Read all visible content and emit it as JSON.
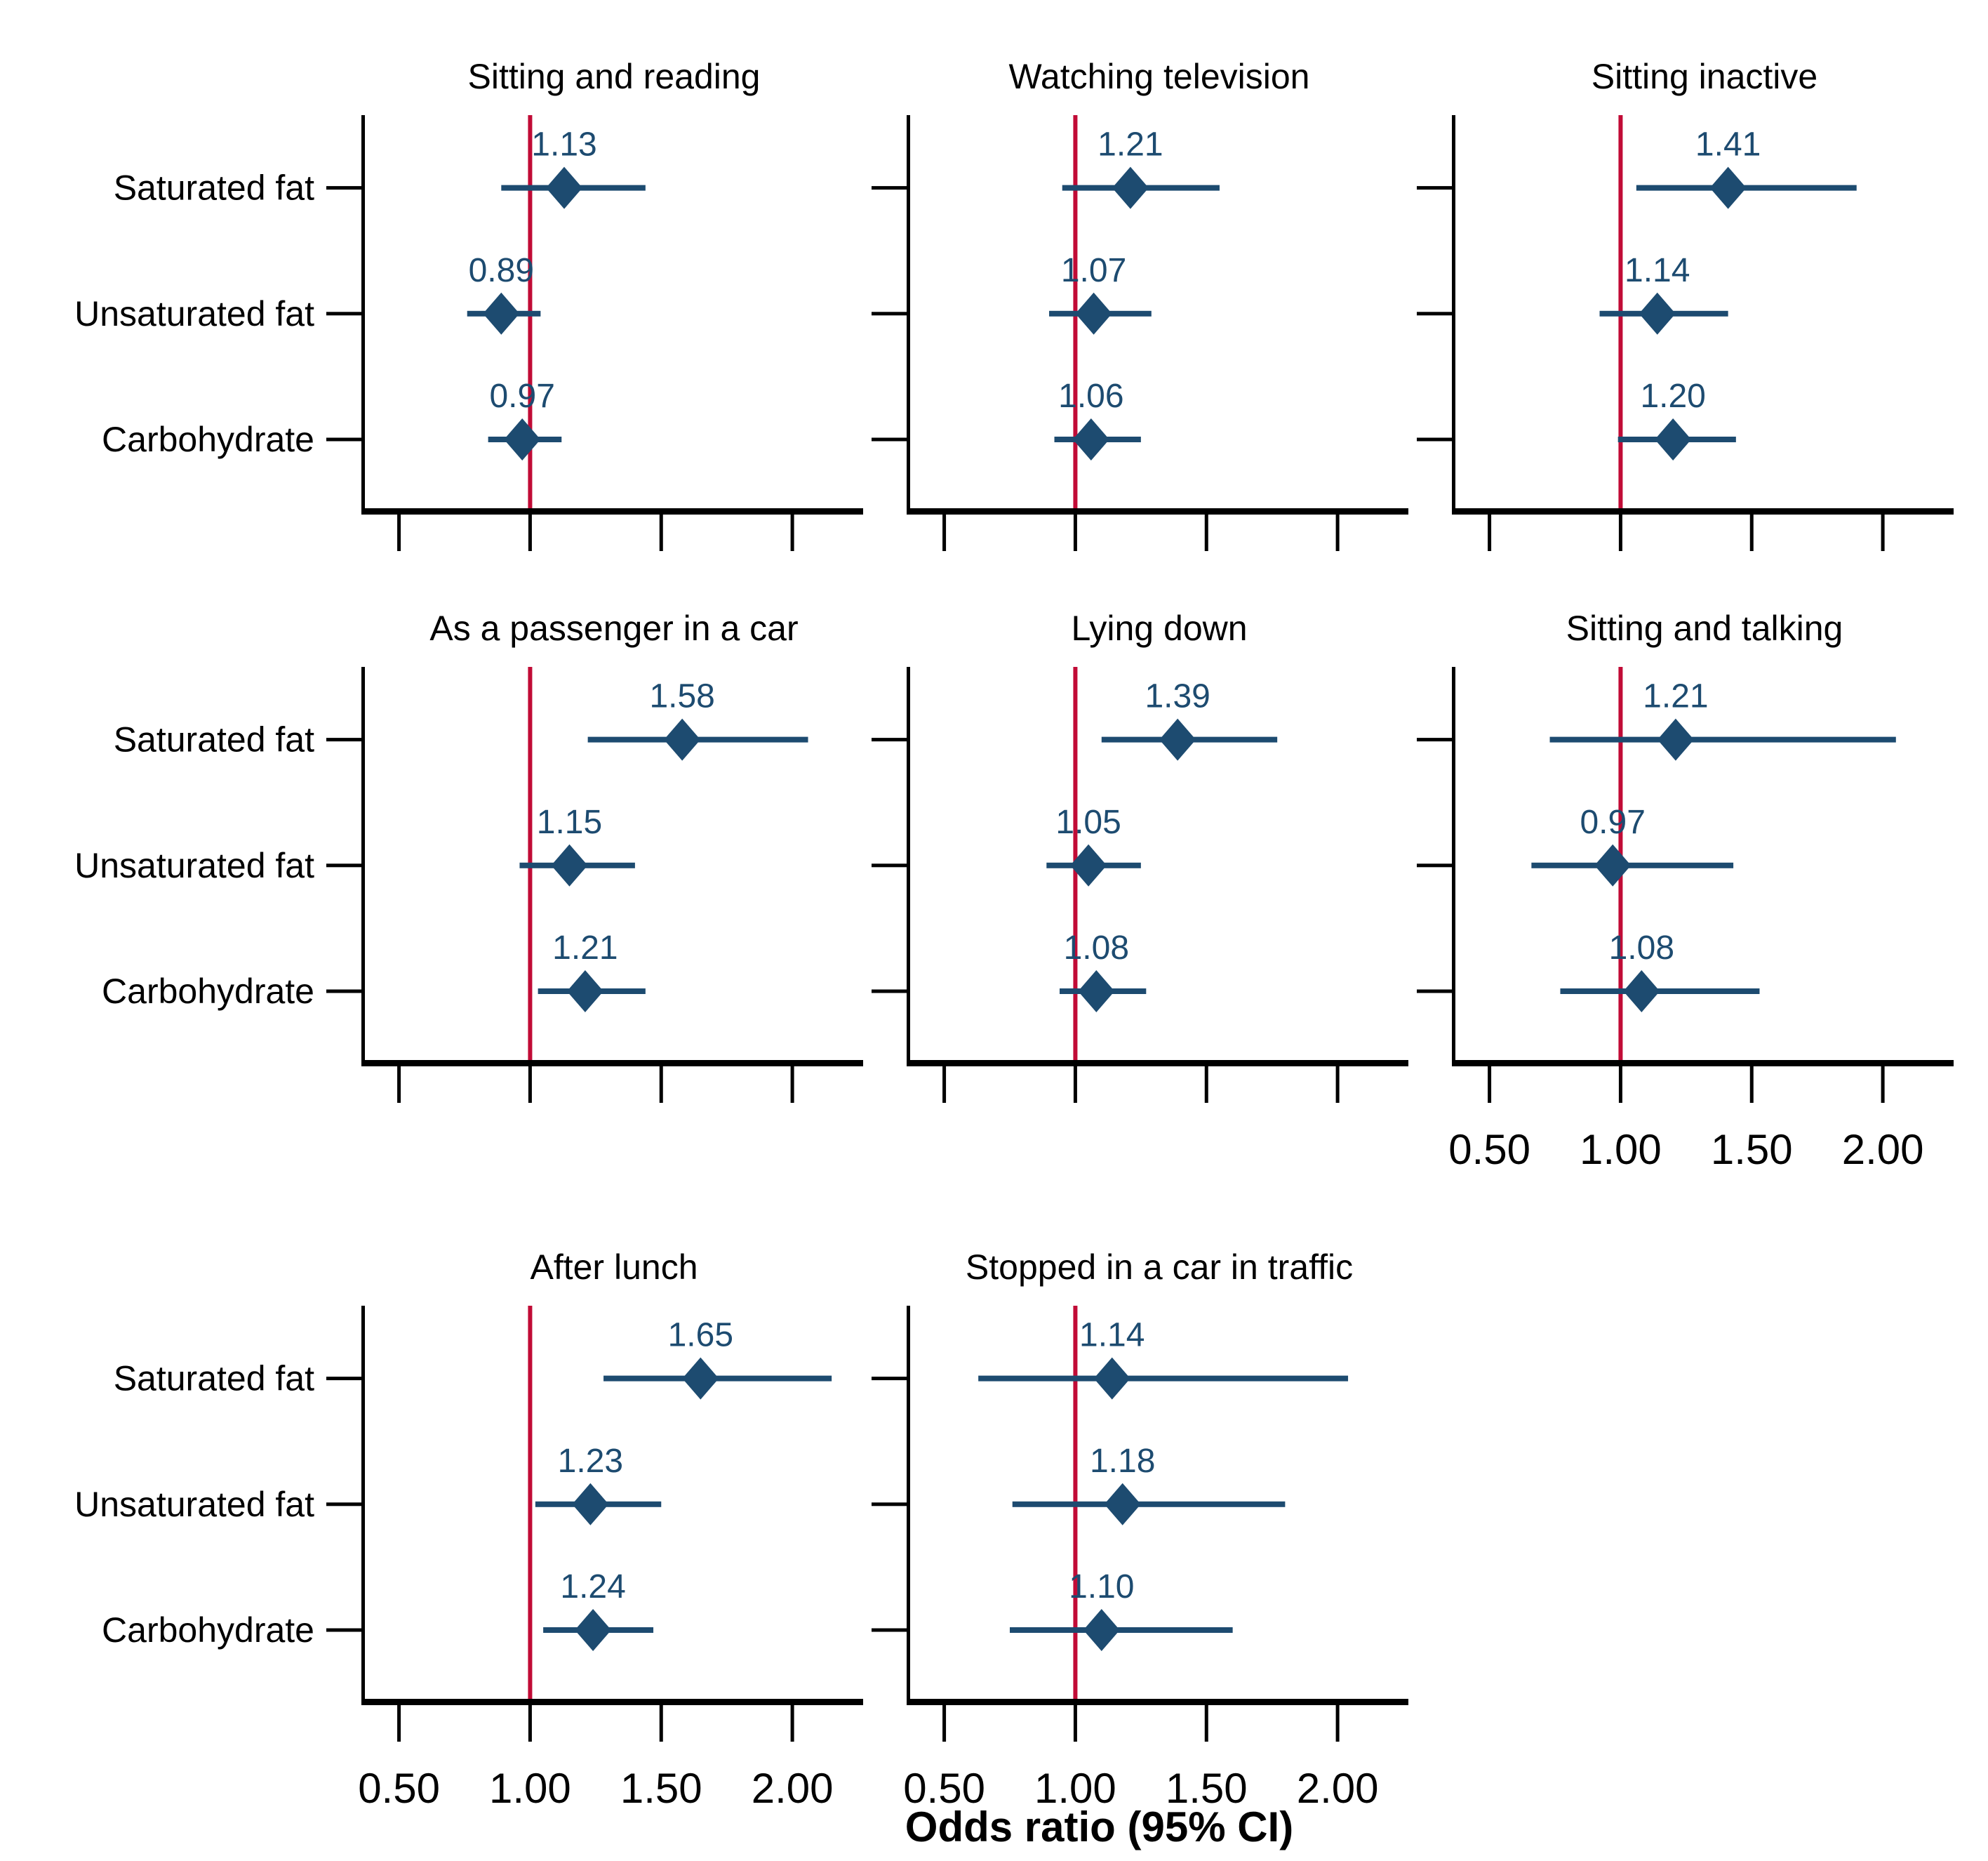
{
  "chart_data": {
    "type": "scatter",
    "variant": "forest-plot",
    "title": "",
    "xlabel": "Odds ratio (95% CI)",
    "ylabel": "",
    "categories": [
      "Saturated fat",
      "Unsaturated fat",
      "Carbohydrate"
    ],
    "x_tick_labels": [
      "0.50",
      "1.00",
      "1.50",
      "2.00"
    ],
    "x_tick_values": [
      0.5,
      1.0,
      1.5,
      2.0
    ],
    "xlim": [
      0.37,
      2.27
    ],
    "reference_line_x": 1.0,
    "grid": "off",
    "legend": "none",
    "colors": {
      "marker": "#1d4b70",
      "ci_line": "#1d4b70",
      "value_label": "#1d4b70",
      "reference_line": "#c10b36",
      "axis": "#000000",
      "text": "#000000",
      "background": "#ffffff"
    },
    "panels": [
      {
        "title": "Sitting and reading",
        "row": 0,
        "col": 0,
        "show_y_labels": true,
        "show_x_tick_labels": false,
        "estimates": [
          {
            "label": "Saturated fat",
            "or": 1.13,
            "or_label": "1.13",
            "ci_low": 0.89,
            "ci_high": 1.44
          },
          {
            "label": "Unsaturated fat",
            "or": 0.89,
            "or_label": "0.89",
            "ci_low": 0.76,
            "ci_high": 1.04
          },
          {
            "label": "Carbohydrate",
            "or": 0.97,
            "or_label": "0.97",
            "ci_low": 0.84,
            "ci_high": 1.12
          }
        ]
      },
      {
        "title": "Watching television",
        "row": 0,
        "col": 1,
        "show_y_labels": false,
        "show_x_tick_labels": false,
        "estimates": [
          {
            "label": "Saturated fat",
            "or": 1.21,
            "or_label": "1.21",
            "ci_low": 0.95,
            "ci_high": 1.55
          },
          {
            "label": "Unsaturated fat",
            "or": 1.07,
            "or_label": "1.07",
            "ci_low": 0.9,
            "ci_high": 1.29
          },
          {
            "label": "Carbohydrate",
            "or": 1.06,
            "or_label": "1.06",
            "ci_low": 0.92,
            "ci_high": 1.25
          }
        ]
      },
      {
        "title": "Sitting inactive",
        "row": 0,
        "col": 2,
        "show_y_labels": false,
        "show_x_tick_labels": false,
        "estimates": [
          {
            "label": "Saturated fat",
            "or": 1.41,
            "or_label": "1.41",
            "ci_low": 1.06,
            "ci_high": 1.9
          },
          {
            "label": "Unsaturated fat",
            "or": 1.14,
            "or_label": "1.14",
            "ci_low": 0.92,
            "ci_high": 1.41
          },
          {
            "label": "Carbohydrate",
            "or": 1.2,
            "or_label": "1.20",
            "ci_low": 0.99,
            "ci_high": 1.44
          }
        ]
      },
      {
        "title": "As a passenger in a car",
        "row": 1,
        "col": 0,
        "show_y_labels": true,
        "show_x_tick_labels": false,
        "estimates": [
          {
            "label": "Saturated fat",
            "or": 1.58,
            "or_label": "1.58",
            "ci_low": 1.22,
            "ci_high": 2.06
          },
          {
            "label": "Unsaturated fat",
            "or": 1.15,
            "or_label": "1.15",
            "ci_low": 0.96,
            "ci_high": 1.4
          },
          {
            "label": "Carbohydrate",
            "or": 1.21,
            "or_label": "1.21",
            "ci_low": 1.03,
            "ci_high": 1.44
          }
        ]
      },
      {
        "title": "Lying down",
        "row": 1,
        "col": 1,
        "show_y_labels": false,
        "show_x_tick_labels": false,
        "estimates": [
          {
            "label": "Saturated fat",
            "or": 1.39,
            "or_label": "1.39",
            "ci_low": 1.1,
            "ci_high": 1.77
          },
          {
            "label": "Unsaturated fat",
            "or": 1.05,
            "or_label": "1.05",
            "ci_low": 0.89,
            "ci_high": 1.25
          },
          {
            "label": "Carbohydrate",
            "or": 1.08,
            "or_label": "1.08",
            "ci_low": 0.94,
            "ci_high": 1.27
          }
        ]
      },
      {
        "title": "Sitting and talking",
        "row": 1,
        "col": 2,
        "show_y_labels": false,
        "show_x_tick_labels": true,
        "estimates": [
          {
            "label": "Saturated fat",
            "or": 1.21,
            "or_label": "1.21",
            "ci_low": 0.73,
            "ci_high": 2.05
          },
          {
            "label": "Unsaturated fat",
            "or": 0.97,
            "or_label": "0.97",
            "ci_low": 0.66,
            "ci_high": 1.43
          },
          {
            "label": "Carbohydrate",
            "or": 1.08,
            "or_label": "1.08",
            "ci_low": 0.77,
            "ci_high": 1.53
          }
        ]
      },
      {
        "title": "After lunch",
        "row": 2,
        "col": 0,
        "show_y_labels": true,
        "show_x_tick_labels": true,
        "estimates": [
          {
            "label": "Saturated fat",
            "or": 1.65,
            "or_label": "1.65",
            "ci_low": 1.28,
            "ci_high": 2.15
          },
          {
            "label": "Unsaturated fat",
            "or": 1.23,
            "or_label": "1.23",
            "ci_low": 1.02,
            "ci_high": 1.5
          },
          {
            "label": "Carbohydrate",
            "or": 1.24,
            "or_label": "1.24",
            "ci_low": 1.05,
            "ci_high": 1.47
          }
        ]
      },
      {
        "title": "Stopped in a car in traffic",
        "row": 2,
        "col": 1,
        "show_y_labels": false,
        "show_x_tick_labels": true,
        "estimates": [
          {
            "label": "Saturated fat",
            "or": 1.14,
            "or_label": "1.14",
            "ci_low": 0.63,
            "ci_high": 2.04
          },
          {
            "label": "Unsaturated fat",
            "or": 1.18,
            "or_label": "1.18",
            "ci_low": 0.76,
            "ci_high": 1.8
          },
          {
            "label": "Carbohydrate",
            "or": 1.1,
            "or_label": "1.10",
            "ci_low": 0.75,
            "ci_high": 1.6
          }
        ]
      }
    ]
  }
}
